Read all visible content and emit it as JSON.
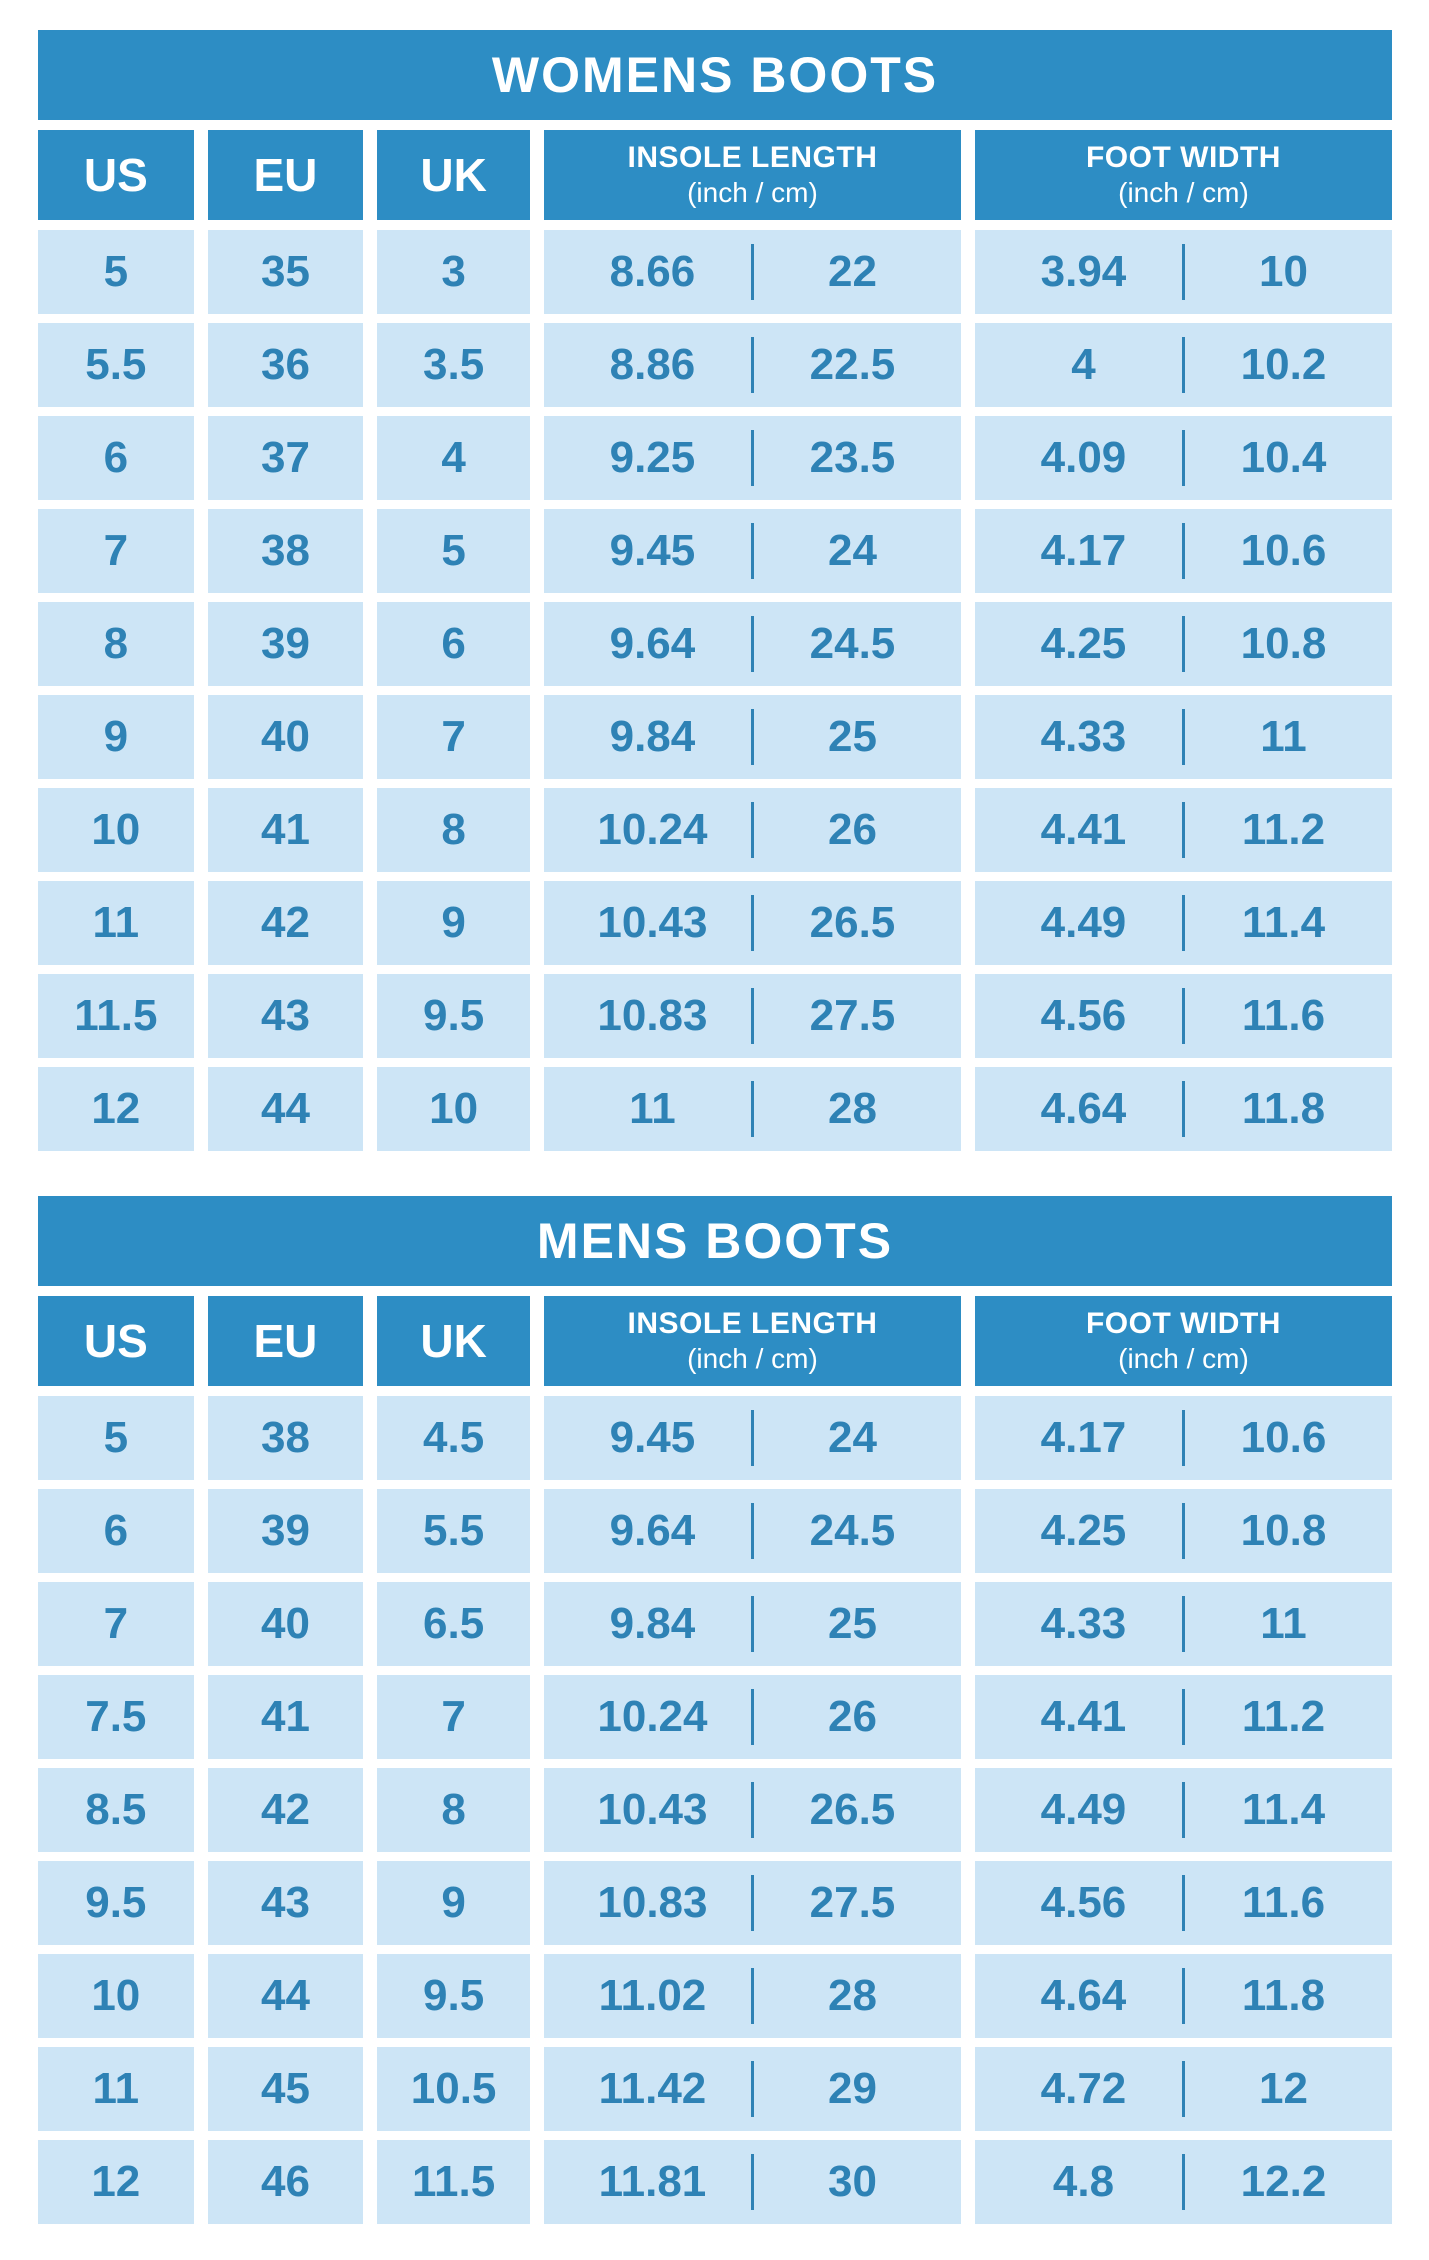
{
  "colors": {
    "dark_blue": "#2d8dc4",
    "light_blue": "#cde5f6",
    "text_blue": "#2e82b5",
    "background": "#ffffff",
    "header_text": "#ffffff"
  },
  "tables": [
    {
      "title": "WOMENS BOOTS",
      "columns": {
        "us": "US",
        "eu": "EU",
        "uk": "UK",
        "insole_line1": "INSOLE LENGTH",
        "insole_line2": "(inch / cm)",
        "foot_line1": "FOOT WIDTH",
        "foot_line2": "(inch / cm)"
      },
      "rows": [
        {
          "us": "5",
          "eu": "35",
          "uk": "3",
          "insole_in": "8.66",
          "insole_cm": "22",
          "width_in": "3.94",
          "width_cm": "10"
        },
        {
          "us": "5.5",
          "eu": "36",
          "uk": "3.5",
          "insole_in": "8.86",
          "insole_cm": "22.5",
          "width_in": "4",
          "width_cm": "10.2"
        },
        {
          "us": "6",
          "eu": "37",
          "uk": "4",
          "insole_in": "9.25",
          "insole_cm": "23.5",
          "width_in": "4.09",
          "width_cm": "10.4"
        },
        {
          "us": "7",
          "eu": "38",
          "uk": "5",
          "insole_in": "9.45",
          "insole_cm": "24",
          "width_in": "4.17",
          "width_cm": "10.6"
        },
        {
          "us": "8",
          "eu": "39",
          "uk": "6",
          "insole_in": "9.64",
          "insole_cm": "24.5",
          "width_in": "4.25",
          "width_cm": "10.8"
        },
        {
          "us": "9",
          "eu": "40",
          "uk": "7",
          "insole_in": "9.84",
          "insole_cm": "25",
          "width_in": "4.33",
          "width_cm": "11"
        },
        {
          "us": "10",
          "eu": "41",
          "uk": "8",
          "insole_in": "10.24",
          "insole_cm": "26",
          "width_in": "4.41",
          "width_cm": "11.2"
        },
        {
          "us": "11",
          "eu": "42",
          "uk": "9",
          "insole_in": "10.43",
          "insole_cm": "26.5",
          "width_in": "4.49",
          "width_cm": "11.4"
        },
        {
          "us": "11.5",
          "eu": "43",
          "uk": "9.5",
          "insole_in": "10.83",
          "insole_cm": "27.5",
          "width_in": "4.56",
          "width_cm": "11.6"
        },
        {
          "us": "12",
          "eu": "44",
          "uk": "10",
          "insole_in": "11",
          "insole_cm": "28",
          "width_in": "4.64",
          "width_cm": "11.8"
        }
      ]
    },
    {
      "title": "MENS BOOTS",
      "columns": {
        "us": "US",
        "eu": "EU",
        "uk": "UK",
        "insole_line1": "INSOLE LENGTH",
        "insole_line2": "(inch / cm)",
        "foot_line1": "FOOT WIDTH",
        "foot_line2": "(inch / cm)"
      },
      "rows": [
        {
          "us": "5",
          "eu": "38",
          "uk": "4.5",
          "insole_in": "9.45",
          "insole_cm": "24",
          "width_in": "4.17",
          "width_cm": "10.6"
        },
        {
          "us": "6",
          "eu": "39",
          "uk": "5.5",
          "insole_in": "9.64",
          "insole_cm": "24.5",
          "width_in": "4.25",
          "width_cm": "10.8"
        },
        {
          "us": "7",
          "eu": "40",
          "uk": "6.5",
          "insole_in": "9.84",
          "insole_cm": "25",
          "width_in": "4.33",
          "width_cm": "11"
        },
        {
          "us": "7.5",
          "eu": "41",
          "uk": "7",
          "insole_in": "10.24",
          "insole_cm": "26",
          "width_in": "4.41",
          "width_cm": "11.2"
        },
        {
          "us": "8.5",
          "eu": "42",
          "uk": "8",
          "insole_in": "10.43",
          "insole_cm": "26.5",
          "width_in": "4.49",
          "width_cm": "11.4"
        },
        {
          "us": "9.5",
          "eu": "43",
          "uk": "9",
          "insole_in": "10.83",
          "insole_cm": "27.5",
          "width_in": "4.56",
          "width_cm": "11.6"
        },
        {
          "us": "10",
          "eu": "44",
          "uk": "9.5",
          "insole_in": "11.02",
          "insole_cm": "28",
          "width_in": "4.64",
          "width_cm": "11.8"
        },
        {
          "us": "11",
          "eu": "45",
          "uk": "10.5",
          "insole_in": "11.42",
          "insole_cm": "29",
          "width_in": "4.72",
          "width_cm": "12"
        },
        {
          "us": "12",
          "eu": "46",
          "uk": "11.5",
          "insole_in": "11.81",
          "insole_cm": "30",
          "width_in": "4.8",
          "width_cm": "12.2"
        }
      ]
    }
  ]
}
